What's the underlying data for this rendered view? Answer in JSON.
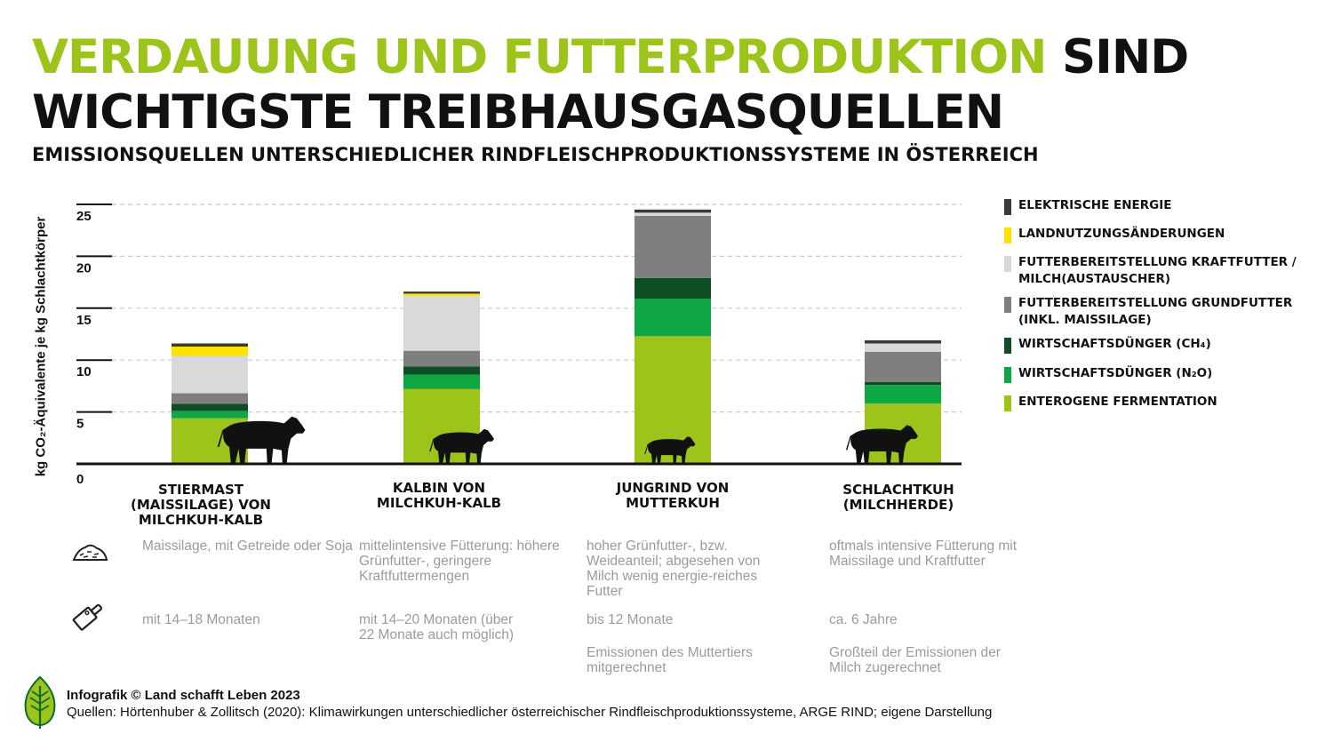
{
  "title": {
    "highlight": "VERDAUUNG UND FUTTERPRODUKTION",
    "rest_line1": "SIND",
    "line2": "WICHTIGSTE TREIBHAUSGASQUELLEN"
  },
  "subtitle": "EMISSIONSQUELLEN UNTERSCHIEDLICHER RINDFLEISCHPRODUKTIONSSYSTEME IN ÖSTERREICH",
  "colors": {
    "accent": "#9dc41a",
    "elektrische_energie": "#3a3a3a",
    "landnutzung": "#ffe200",
    "kraftfutter": "#d9d9d9",
    "grundfutter": "#7f7f7f",
    "ch4": "#0f4d25",
    "n2o": "#0fa644",
    "fermentation": "#9dc41a"
  },
  "chart_data": {
    "type": "bar",
    "stacked": true,
    "ylabel": "kg CO₂-Äquivalente je kg Schlachtkörper",
    "ylim": [
      0,
      25
    ],
    "yticks": [
      0,
      5,
      10,
      15,
      20,
      25
    ],
    "grid": true,
    "legend_position": "right",
    "categories": [
      "STIERMAST (MAISSILAGE) VON MILCHKUH-KALB",
      "KALBIN VON MILCHKUH-KALB",
      "JUNGRIND VON MUTTERKUH",
      "SCHLACHTKUH (MILCHHERDE)"
    ],
    "series": [
      {
        "name": "ENTEROGENE FERMENTATION",
        "color_key": "fermentation",
        "values": [
          4.4,
          7.2,
          12.3,
          5.8
        ]
      },
      {
        "name": "WIRTSCHAFTSDÜNGER (N₂O)",
        "color_key": "n2o",
        "values": [
          0.7,
          1.4,
          3.6,
          1.8
        ]
      },
      {
        "name": "WIRTSCHAFTSDÜNGER (CH₄)",
        "color_key": "ch4",
        "values": [
          0.7,
          0.8,
          2.0,
          0.3
        ]
      },
      {
        "name": "FUTTERBEREITSTELLUNG GRUNDFUTTER (INKL. MAISSILAGE)",
        "color_key": "grundfutter",
        "values": [
          1.0,
          1.5,
          6.0,
          2.9
        ]
      },
      {
        "name": "FUTTERBEREITSTELLUNG KRAFTFUTTER / MILCH(AUSTAUSCHER)",
        "color_key": "kraftfutter",
        "values": [
          3.6,
          5.3,
          0.3,
          0.8
        ]
      },
      {
        "name": "LANDNUTZUNGSÄNDERUNGEN",
        "color_key": "landnutzung",
        "values": [
          0.9,
          0.2,
          0.0,
          0.0
        ]
      },
      {
        "name": "ELEKTRISCHE ENERGIE",
        "color_key": "elektrische_energie",
        "values": [
          0.3,
          0.2,
          0.3,
          0.3
        ]
      }
    ]
  },
  "category_labels": [
    "STIERMAST\n(MAISSILAGE) VON\nMILCHKUH-KALB",
    "KALBIN VON\nMILCHKUH-KALB",
    "JUNGRIND VON\nMUTTERKUH",
    "SCHLACHTKUH\n(MILCHHERDE)"
  ],
  "legend": [
    {
      "label": "ELEKTRISCHE ENERGIE",
      "color_key": "elektrische_energie"
    },
    {
      "label": "LANDNUTZUNGSÄNDERUNGEN",
      "color_key": "landnutzung"
    },
    {
      "label": "FUTTERBEREITSTELLUNG KRAFTFUTTER / MILCH(AUSTAUSCHER)",
      "color_key": "kraftfutter"
    },
    {
      "label": "FUTTERBEREITSTELLUNG GRUNDFUTTER (INKL. MAISSILAGE)",
      "color_key": "grundfutter"
    },
    {
      "label": "WIRTSCHAFTSDÜNGER (CH₄)",
      "color_key": "ch4"
    },
    {
      "label": "WIRTSCHAFTSDÜNGER (N₂O)",
      "color_key": "n2o"
    },
    {
      "label": "ENTEROGENE FERMENTATION",
      "color_key": "fermentation"
    }
  ],
  "feeding_row": {
    "icon": "feed-pile-icon",
    "items": [
      "Maissilage, mit Getreide oder Soja",
      "mittelintensive Fütterung: höhere Grünfutter-, geringere Kraftfuttermengen",
      "hoher Grünfutter-, bzw. Weideanteil; abgesehen von Milch wenig energie-reiches Futter",
      "oftmals intensive Fütterung mit Maissilage und Kraftfutter"
    ]
  },
  "slaughter_row": {
    "icon": "cleaver-icon",
    "items": [
      "mit 14–18 Monaten",
      "mit 14–20 Monaten (über 22 Monate auch möglich)",
      "bis 12 Monate",
      "ca. 6 Jahre"
    ]
  },
  "notes_row": {
    "items": [
      "",
      "",
      "Emissionen des Muttertiers mitgerechnet",
      "Großteil der Emissionen der Milch zugerechnet"
    ]
  },
  "footer": {
    "credit": "Infografik © Land schafft Leben 2023",
    "sources": "Quellen: Hörtenhuber & Zollitsch (2020): Klimawirkungen unterschiedlicher österreichischer Rindfleischproduktionssysteme, ARGE RIND; eigene Darstellung"
  }
}
